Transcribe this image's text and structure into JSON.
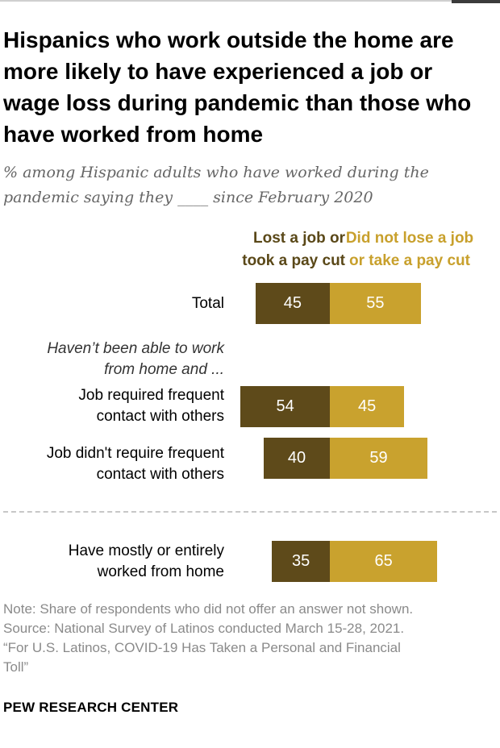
{
  "title": "Hispanics who work outside the home are more likely to have experienced a job or wage loss during pandemic than those who have worked from home",
  "subtitle": "% among Hispanic adults who have worked during the pandemic saying they ____ since February 2020",
  "legend": {
    "lost_line1": "Lost a job or",
    "lost_line2": "took a pay cut",
    "notlost_line1": "Did not lose a job",
    "notlost_line2": "or take a pay cut"
  },
  "group_header": {
    "line1": "Haven’t been able to work",
    "line2": "from home and ..."
  },
  "colors": {
    "lost": "#5e4a1a",
    "not_lost": "#c9a22e"
  },
  "chart_data": {
    "type": "bar",
    "stacked": true,
    "orientation": "horizontal",
    "categories": [
      "Total",
      "Job required frequent contact with others",
      "Job didn't require frequent contact with others",
      "Have mostly or entirely worked from home"
    ],
    "category_lines": [
      [
        "Total"
      ],
      [
        "Job required frequent",
        "contact with others"
      ],
      [
        "Job didn't require frequent",
        "contact with others"
      ],
      [
        "Have mostly or entirely",
        "worked from home"
      ]
    ],
    "series": [
      {
        "name": "Lost a job or took a pay cut",
        "values": [
          45,
          54,
          40,
          35
        ]
      },
      {
        "name": "Did not lose a job or take a pay cut",
        "values": [
          55,
          45,
          59,
          65
        ]
      }
    ]
  },
  "notes": {
    "note": "Note: Share of respondents who did not offer an answer not shown.",
    "source": "Source: National Survey of Latinos conducted March 15-28, 2021.",
    "report_line1": "“For U.S. Latinos, COVID-19 Has Taken a Personal and Financial",
    "report_line2": "Toll”"
  },
  "brand": "PEW RESEARCH CENTER"
}
